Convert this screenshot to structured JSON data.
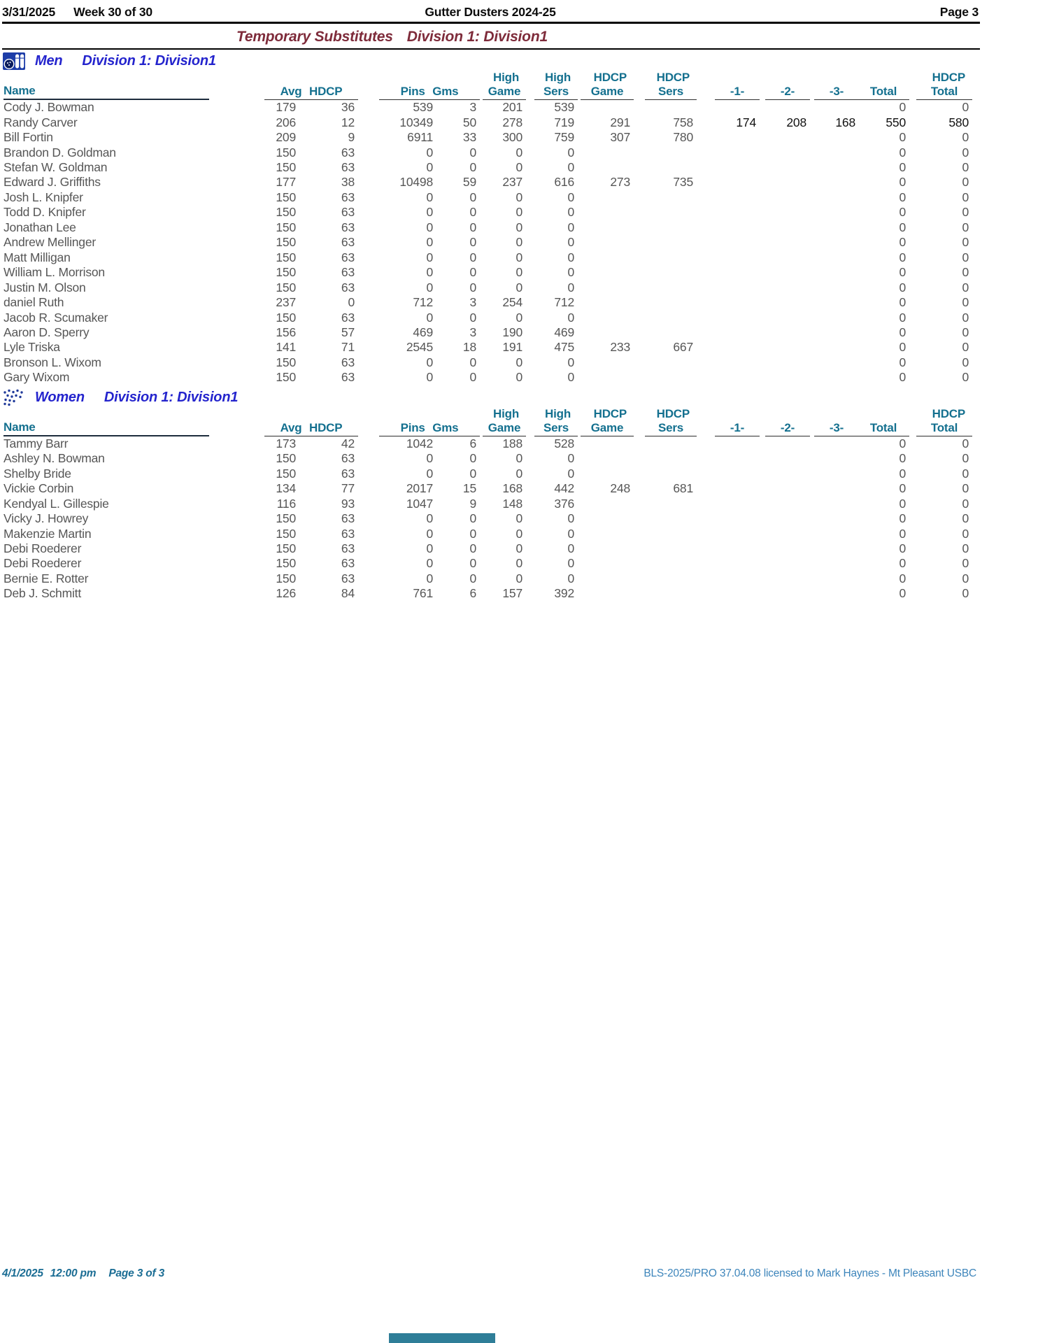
{
  "page_header": {
    "date": "3/31/2025",
    "week": "Week 30 of 30",
    "league": "Gutter Dusters 2024-25",
    "page": "Page 3"
  },
  "title": {
    "report": "Temporary Substitutes",
    "division": "Division 1: Division1"
  },
  "table": {
    "columns": [
      {
        "key": "name",
        "top": "",
        "label": "Name"
      },
      {
        "key": "avg_hdcp",
        "top": "",
        "label": "Avg HDCP",
        "group": true
      },
      {
        "key": "pins_gms",
        "top": "",
        "label": "Pins Gms",
        "group": true
      },
      {
        "key": "high_game",
        "top": "High",
        "label": "Game"
      },
      {
        "key": "high_sers",
        "top": "High",
        "label": "Sers"
      },
      {
        "key": "hdcp_game",
        "top": "HDCP",
        "label": "Game"
      },
      {
        "key": "hdcp_sers",
        "top": "HDCP",
        "label": "Sers"
      },
      {
        "key": "g1",
        "top": "",
        "label": "-1-"
      },
      {
        "key": "g2",
        "top": "",
        "label": "-2-"
      },
      {
        "key": "g3",
        "top": "",
        "label": "-3-"
      },
      {
        "key": "total",
        "top": "",
        "label": "Total"
      },
      {
        "key": "hdcp_total",
        "top": "HDCP",
        "label": "Total"
      }
    ]
  },
  "sections": [
    {
      "gender": "Men",
      "division": "Division 1: Division1",
      "icon": "bowling-ball-pins-icon",
      "rows": [
        {
          "name": "Cody J. Bowman",
          "avg": "179",
          "hdcp": "36",
          "pins": "539",
          "gms": "3",
          "high_game": "201",
          "high_sers": "539",
          "hdcp_game": "",
          "hdcp_sers": "",
          "g1": "",
          "g2": "",
          "g3": "",
          "total": "0",
          "hdcp_total": "0"
        },
        {
          "name": "Randy Carver",
          "avg": "206",
          "hdcp": "12",
          "pins": "10349",
          "gms": "50",
          "high_game": "278",
          "high_sers": "719",
          "hdcp_game": "291",
          "hdcp_sers": "758",
          "g1": "174",
          "g2": "208",
          "g3": "168",
          "total": "550",
          "hdcp_total": "580",
          "current_week": true
        },
        {
          "name": "Bill Fortin",
          "avg": "209",
          "hdcp": "9",
          "pins": "6911",
          "gms": "33",
          "high_game": "300",
          "high_sers": "759",
          "hdcp_game": "307",
          "hdcp_sers": "780",
          "g1": "",
          "g2": "",
          "g3": "",
          "total": "0",
          "hdcp_total": "0"
        },
        {
          "name": "Brandon D. Goldman",
          "avg": "150",
          "hdcp": "63",
          "pins": "0",
          "gms": "0",
          "high_game": "0",
          "high_sers": "0",
          "hdcp_game": "",
          "hdcp_sers": "",
          "g1": "",
          "g2": "",
          "g3": "",
          "total": "0",
          "hdcp_total": "0"
        },
        {
          "name": "Stefan W. Goldman",
          "avg": "150",
          "hdcp": "63",
          "pins": "0",
          "gms": "0",
          "high_game": "0",
          "high_sers": "0",
          "hdcp_game": "",
          "hdcp_sers": "",
          "g1": "",
          "g2": "",
          "g3": "",
          "total": "0",
          "hdcp_total": "0"
        },
        {
          "name": "Edward J. Griffiths",
          "avg": "177",
          "hdcp": "38",
          "pins": "10498",
          "gms": "59",
          "high_game": "237",
          "high_sers": "616",
          "hdcp_game": "273",
          "hdcp_sers": "735",
          "g1": "",
          "g2": "",
          "g3": "",
          "total": "0",
          "hdcp_total": "0"
        },
        {
          "name": "Josh L. Knipfer",
          "avg": "150",
          "hdcp": "63",
          "pins": "0",
          "gms": "0",
          "high_game": "0",
          "high_sers": "0",
          "hdcp_game": "",
          "hdcp_sers": "",
          "g1": "",
          "g2": "",
          "g3": "",
          "total": "0",
          "hdcp_total": "0"
        },
        {
          "name": "Todd D. Knipfer",
          "avg": "150",
          "hdcp": "63",
          "pins": "0",
          "gms": "0",
          "high_game": "0",
          "high_sers": "0",
          "hdcp_game": "",
          "hdcp_sers": "",
          "g1": "",
          "g2": "",
          "g3": "",
          "total": "0",
          "hdcp_total": "0"
        },
        {
          "name": "Jonathan Lee",
          "avg": "150",
          "hdcp": "63",
          "pins": "0",
          "gms": "0",
          "high_game": "0",
          "high_sers": "0",
          "hdcp_game": "",
          "hdcp_sers": "",
          "g1": "",
          "g2": "",
          "g3": "",
          "total": "0",
          "hdcp_total": "0"
        },
        {
          "name": "Andrew Mellinger",
          "avg": "150",
          "hdcp": "63",
          "pins": "0",
          "gms": "0",
          "high_game": "0",
          "high_sers": "0",
          "hdcp_game": "",
          "hdcp_sers": "",
          "g1": "",
          "g2": "",
          "g3": "",
          "total": "0",
          "hdcp_total": "0"
        },
        {
          "name": "Matt Milligan",
          "avg": "150",
          "hdcp": "63",
          "pins": "0",
          "gms": "0",
          "high_game": "0",
          "high_sers": "0",
          "hdcp_game": "",
          "hdcp_sers": "",
          "g1": "",
          "g2": "",
          "g3": "",
          "total": "0",
          "hdcp_total": "0"
        },
        {
          "name": "William L. Morrison",
          "avg": "150",
          "hdcp": "63",
          "pins": "0",
          "gms": "0",
          "high_game": "0",
          "high_sers": "0",
          "hdcp_game": "",
          "hdcp_sers": "",
          "g1": "",
          "g2": "",
          "g3": "",
          "total": "0",
          "hdcp_total": "0"
        },
        {
          "name": "Justin M. Olson",
          "avg": "150",
          "hdcp": "63",
          "pins": "0",
          "gms": "0",
          "high_game": "0",
          "high_sers": "0",
          "hdcp_game": "",
          "hdcp_sers": "",
          "g1": "",
          "g2": "",
          "g3": "",
          "total": "0",
          "hdcp_total": "0"
        },
        {
          "name": "daniel Ruth",
          "avg": "237",
          "hdcp": "0",
          "pins": "712",
          "gms": "3",
          "high_game": "254",
          "high_sers": "712",
          "hdcp_game": "",
          "hdcp_sers": "",
          "g1": "",
          "g2": "",
          "g3": "",
          "total": "0",
          "hdcp_total": "0"
        },
        {
          "name": "Jacob R. Scumaker",
          "avg": "150",
          "hdcp": "63",
          "pins": "0",
          "gms": "0",
          "high_game": "0",
          "high_sers": "0",
          "hdcp_game": "",
          "hdcp_sers": "",
          "g1": "",
          "g2": "",
          "g3": "",
          "total": "0",
          "hdcp_total": "0"
        },
        {
          "name": "Aaron D. Sperry",
          "avg": "156",
          "hdcp": "57",
          "pins": "469",
          "gms": "3",
          "high_game": "190",
          "high_sers": "469",
          "hdcp_game": "",
          "hdcp_sers": "",
          "g1": "",
          "g2": "",
          "g3": "",
          "total": "0",
          "hdcp_total": "0"
        },
        {
          "name": "Lyle Triska",
          "avg": "141",
          "hdcp": "71",
          "pins": "2545",
          "gms": "18",
          "high_game": "191",
          "high_sers": "475",
          "hdcp_game": "233",
          "hdcp_sers": "667",
          "g1": "",
          "g2": "",
          "g3": "",
          "total": "0",
          "hdcp_total": "0"
        },
        {
          "name": "Bronson L. Wixom",
          "avg": "150",
          "hdcp": "63",
          "pins": "0",
          "gms": "0",
          "high_game": "0",
          "high_sers": "0",
          "hdcp_game": "",
          "hdcp_sers": "",
          "g1": "",
          "g2": "",
          "g3": "",
          "total": "0",
          "hdcp_total": "0"
        },
        {
          "name": "Gary Wixom",
          "avg": "150",
          "hdcp": "63",
          "pins": "0",
          "gms": "0",
          "high_game": "0",
          "high_sers": "0",
          "hdcp_game": "",
          "hdcp_sers": "",
          "g1": "",
          "g2": "",
          "g3": "",
          "total": "0",
          "hdcp_total": "0"
        }
      ]
    },
    {
      "gender": "Women",
      "division": "Division 1: Division1",
      "icon": "dotted-figure-icon",
      "rows": [
        {
          "name": "Tammy Barr",
          "avg": "173",
          "hdcp": "42",
          "pins": "1042",
          "gms": "6",
          "high_game": "188",
          "high_sers": "528",
          "hdcp_game": "",
          "hdcp_sers": "",
          "g1": "",
          "g2": "",
          "g3": "",
          "total": "0",
          "hdcp_total": "0"
        },
        {
          "name": "Ashley N. Bowman",
          "avg": "150",
          "hdcp": "63",
          "pins": "0",
          "gms": "0",
          "high_game": "0",
          "high_sers": "0",
          "hdcp_game": "",
          "hdcp_sers": "",
          "g1": "",
          "g2": "",
          "g3": "",
          "total": "0",
          "hdcp_total": "0"
        },
        {
          "name": "Shelby Bride",
          "avg": "150",
          "hdcp": "63",
          "pins": "0",
          "gms": "0",
          "high_game": "0",
          "high_sers": "0",
          "hdcp_game": "",
          "hdcp_sers": "",
          "g1": "",
          "g2": "",
          "g3": "",
          "total": "0",
          "hdcp_total": "0"
        },
        {
          "name": "Vickie Corbin",
          "avg": "134",
          "hdcp": "77",
          "pins": "2017",
          "gms": "15",
          "high_game": "168",
          "high_sers": "442",
          "hdcp_game": "248",
          "hdcp_sers": "681",
          "g1": "",
          "g2": "",
          "g3": "",
          "total": "0",
          "hdcp_total": "0"
        },
        {
          "name": "Kendyal L. Gillespie",
          "avg": "116",
          "hdcp": "93",
          "pins": "1047",
          "gms": "9",
          "high_game": "148",
          "high_sers": "376",
          "hdcp_game": "",
          "hdcp_sers": "",
          "g1": "",
          "g2": "",
          "g3": "",
          "total": "0",
          "hdcp_total": "0"
        },
        {
          "name": "Vicky J. Howrey",
          "avg": "150",
          "hdcp": "63",
          "pins": "0",
          "gms": "0",
          "high_game": "0",
          "high_sers": "0",
          "hdcp_game": "",
          "hdcp_sers": "",
          "g1": "",
          "g2": "",
          "g3": "",
          "total": "0",
          "hdcp_total": "0"
        },
        {
          "name": "Makenzie Martin",
          "avg": "150",
          "hdcp": "63",
          "pins": "0",
          "gms": "0",
          "high_game": "0",
          "high_sers": "0",
          "hdcp_game": "",
          "hdcp_sers": "",
          "g1": "",
          "g2": "",
          "g3": "",
          "total": "0",
          "hdcp_total": "0"
        },
        {
          "name": "Debi Roederer",
          "avg": "150",
          "hdcp": "63",
          "pins": "0",
          "gms": "0",
          "high_game": "0",
          "high_sers": "0",
          "hdcp_game": "",
          "hdcp_sers": "",
          "g1": "",
          "g2": "",
          "g3": "",
          "total": "0",
          "hdcp_total": "0"
        },
        {
          "name": "Debi Roederer",
          "avg": "150",
          "hdcp": "63",
          "pins": "0",
          "gms": "0",
          "high_game": "0",
          "high_sers": "0",
          "hdcp_game": "",
          "hdcp_sers": "",
          "g1": "",
          "g2": "",
          "g3": "",
          "total": "0",
          "hdcp_total": "0"
        },
        {
          "name": "Bernie E. Rotter",
          "avg": "150",
          "hdcp": "63",
          "pins": "0",
          "gms": "0",
          "high_game": "0",
          "high_sers": "0",
          "hdcp_game": "",
          "hdcp_sers": "",
          "g1": "",
          "g2": "",
          "g3": "",
          "total": "0",
          "hdcp_total": "0"
        },
        {
          "name": "Deb J. Schmitt",
          "avg": "126",
          "hdcp": "84",
          "pins": "761",
          "gms": "6",
          "high_game": "157",
          "high_sers": "392",
          "hdcp_game": "",
          "hdcp_sers": "",
          "g1": "",
          "g2": "",
          "g3": "",
          "total": "0",
          "hdcp_total": "0"
        }
      ]
    }
  ],
  "footer": {
    "date": "4/1/2025",
    "time": "12:00 pm",
    "page": "Page 3 of 3",
    "license": "BLS-2025/PRO 37.04.08 licensed to Mark Haynes - Mt Pleasant USBC"
  },
  "colors": {
    "header_teal": "#14708f",
    "section_blue": "#2424cd",
    "title_maroon": "#7e2b3a",
    "data_gray": "#565656",
    "current_week_black": "#121212",
    "footer_left_teal": "#1b6d94",
    "footer_right_blue": "#3d85bb",
    "accent_bar_teal": "#2f7e98"
  }
}
